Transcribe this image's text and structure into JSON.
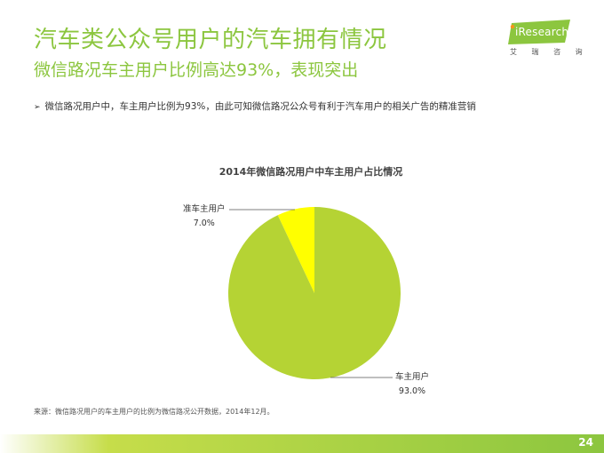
{
  "header": {
    "title": "汽车类公众号用户的汽车拥有情况",
    "subtitle": "微信路况车主用户比例高达93%，表现突出"
  },
  "logo": {
    "brand": "iResearch",
    "sub": "艾 瑞 咨 询"
  },
  "bullet": {
    "arrow": "➢",
    "text": "微信路况用户中，车主用户比例为93%，由此可知微信路况公众号有利于汽车用户的相关广告的精准营销"
  },
  "colors": {
    "accent": "#8cc63f",
    "owner": "#b5d334",
    "prospective": "#ffff00"
  },
  "chart_data": {
    "type": "pie",
    "title": "2014年微信路况用户中车主用户占比情况",
    "slices": [
      {
        "name": "车主用户",
        "value": 93.0,
        "label": "93.0%"
      },
      {
        "name": "准车主用户",
        "value": 7.0,
        "label": "7.0%"
      }
    ]
  },
  "source": "来源：微信路况用户的车主用户的比例为微信路况公开数据，2014年12月。",
  "page_number": "24"
}
